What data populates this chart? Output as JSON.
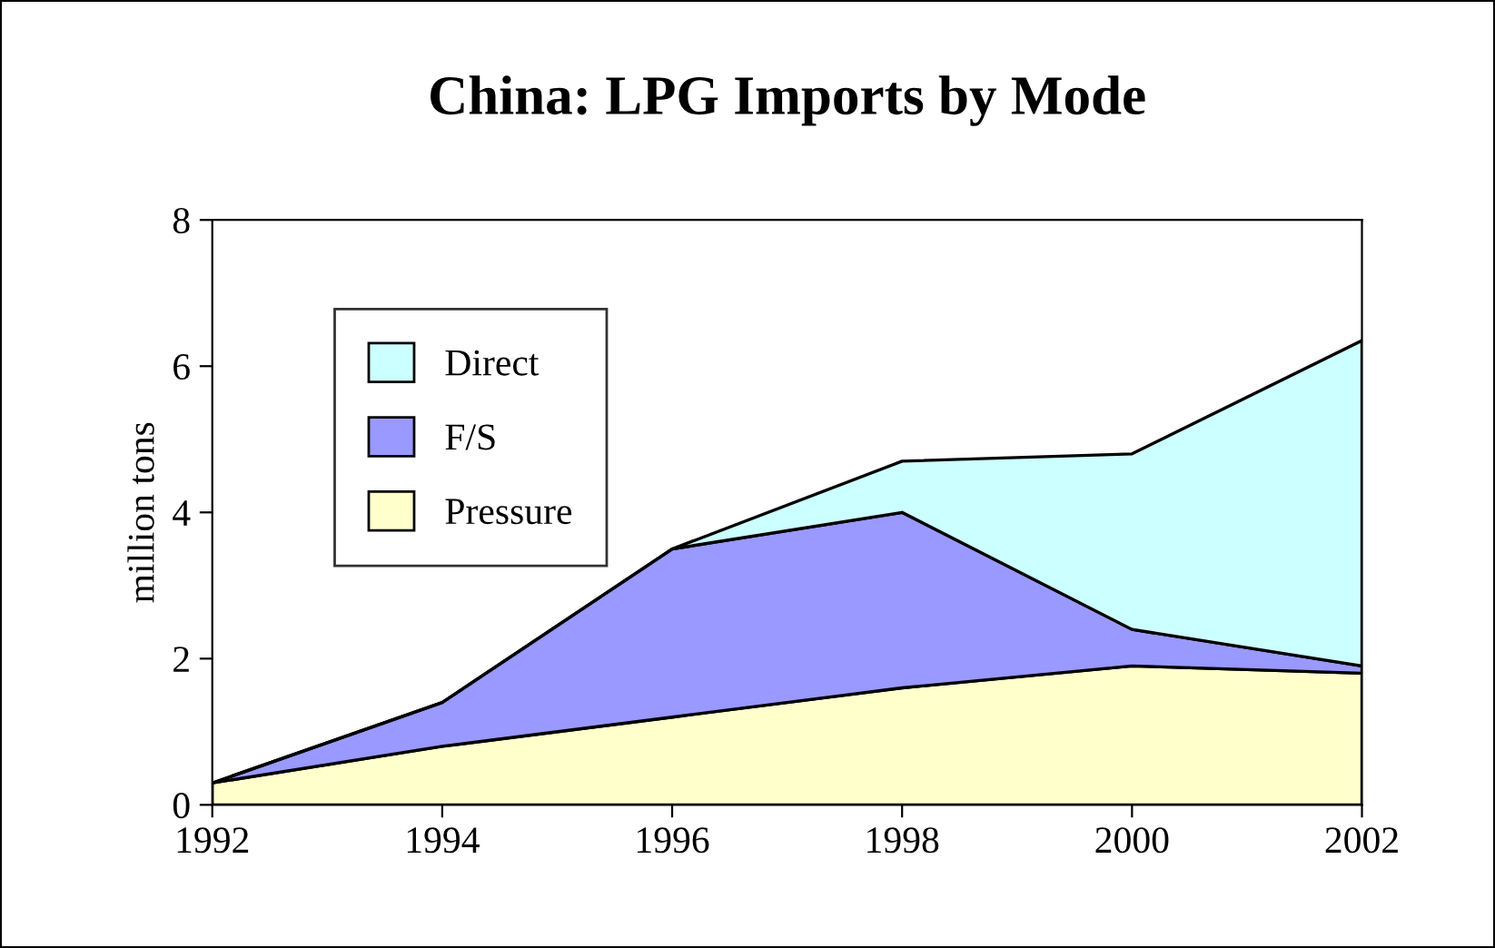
{
  "chart_data": {
    "type": "area",
    "title": "China: LPG Imports by Mode",
    "ylabel": "million tons",
    "stacked": true,
    "x": [
      1992,
      1994,
      1996,
      1998,
      2000,
      2002
    ],
    "series": [
      {
        "name": "Pressure",
        "color": "#ffffcc",
        "values": [
          0.3,
          0.8,
          1.2,
          1.6,
          1.9,
          1.8
        ]
      },
      {
        "name": "F/S",
        "color": "#9999ff",
        "values": [
          0,
          0.6,
          2.3,
          2.4,
          0.5,
          0.1
        ]
      },
      {
        "name": "Direct",
        "color": "#ccffff",
        "values": [
          0,
          0,
          0,
          0.7,
          2.4,
          4.45
        ]
      }
    ],
    "xlim": [
      1992,
      2002
    ],
    "xticks": [
      1992,
      1994,
      1996,
      1998,
      2000,
      2002
    ],
    "ylim": [
      0,
      8
    ],
    "yticks": [
      0,
      2,
      4,
      6,
      8
    ],
    "grid": false,
    "legend": "top left"
  }
}
